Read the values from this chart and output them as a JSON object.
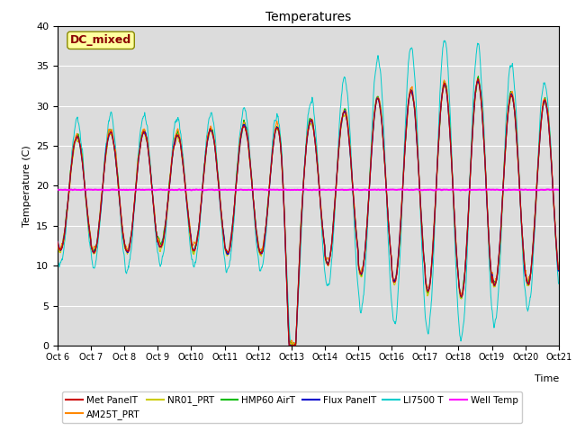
{
  "title": "Temperatures",
  "xlabel": "Time",
  "ylabel": "Temperature (C)",
  "ylim": [
    0,
    40
  ],
  "x_tick_labels": [
    "Oct 6",
    "Oct 7",
    "Oct 8",
    "Oct 9",
    "Oct 10",
    "Oct 11",
    "Oct 12",
    "Oct 13",
    "Oct 14",
    "Oct 15",
    "Oct 16",
    "Oct 17",
    "Oct 18",
    "Oct 19",
    "Oct 20",
    "Oct 21"
  ],
  "well_temp": 19.5,
  "annotation_text": "DC_mixed",
  "annotation_color": "#8B0000",
  "annotation_bg": "#FFFFA0",
  "bg_color": "#DCDCDC",
  "series_colors": {
    "Met PanelT": "#CC0000",
    "AM25T_PRT": "#FF8800",
    "NR01_PRT": "#CCCC00",
    "HMP60 AirT": "#00BB00",
    "Flux PanelT": "#0000CC",
    "LI7500 T": "#00CCCC",
    "Well Temp": "#FF00FF"
  },
  "legend_order": [
    "Met PanelT",
    "AM25T_PRT",
    "NR01_PRT",
    "HMP60 AirT",
    "Flux PanelT",
    "LI7500 T",
    "Well Temp"
  ]
}
